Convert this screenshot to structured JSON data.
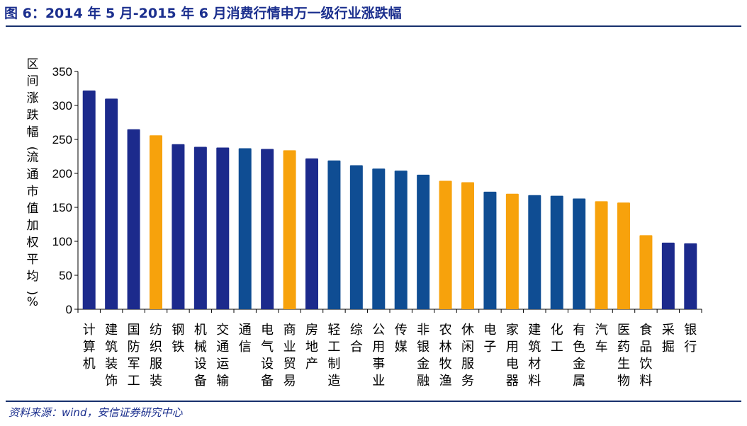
{
  "header": {
    "title": "图 6：2014 年 5 月-2015 年 6 月消费行情申万一级行业涨跌幅"
  },
  "footer": {
    "source": "资料来源：wind，安信证券研究中心"
  },
  "colors": {
    "dark_blue": "#1c2a8c",
    "mid_blue": "#0f4d93",
    "orange": "#f7a20c",
    "rule": "#17306d"
  },
  "chart_data": {
    "type": "bar",
    "ylabel": "区间涨跌幅(流通市值加权平均)%",
    "ylim": [
      0,
      350
    ],
    "yticks": [
      0,
      50,
      100,
      150,
      200,
      250,
      300,
      350
    ],
    "grid": false,
    "categories": [
      "计算机",
      "建筑装饰",
      "国防军工",
      "纺织服装",
      "钢铁",
      "机械设备",
      "交通运输",
      "通信",
      "电气设备",
      "商业贸易",
      "房地产",
      "轻工制造",
      "综合",
      "公用事业",
      "传媒",
      "非银金融",
      "农林牧渔",
      "休闲服务",
      "电子",
      "家用电器",
      "建筑材料",
      "化工",
      "有色金属",
      "汽车",
      "医药生物",
      "食品饮料",
      "采掘",
      "银行"
    ],
    "values": [
      322,
      310,
      265,
      256,
      243,
      239,
      238,
      237,
      236,
      234,
      222,
      219,
      212,
      207,
      204,
      198,
      189,
      187,
      173,
      170,
      168,
      167,
      163,
      159,
      157,
      109,
      98,
      97
    ],
    "bar_colors": [
      "dark_blue",
      "dark_blue",
      "dark_blue",
      "orange",
      "dark_blue",
      "dark_blue",
      "dark_blue",
      "mid_blue",
      "dark_blue",
      "orange",
      "dark_blue",
      "mid_blue",
      "mid_blue",
      "mid_blue",
      "mid_blue",
      "mid_blue",
      "orange",
      "orange",
      "mid_blue",
      "orange",
      "mid_blue",
      "mid_blue",
      "mid_blue",
      "orange",
      "orange",
      "orange",
      "dark_blue",
      "dark_blue"
    ]
  }
}
